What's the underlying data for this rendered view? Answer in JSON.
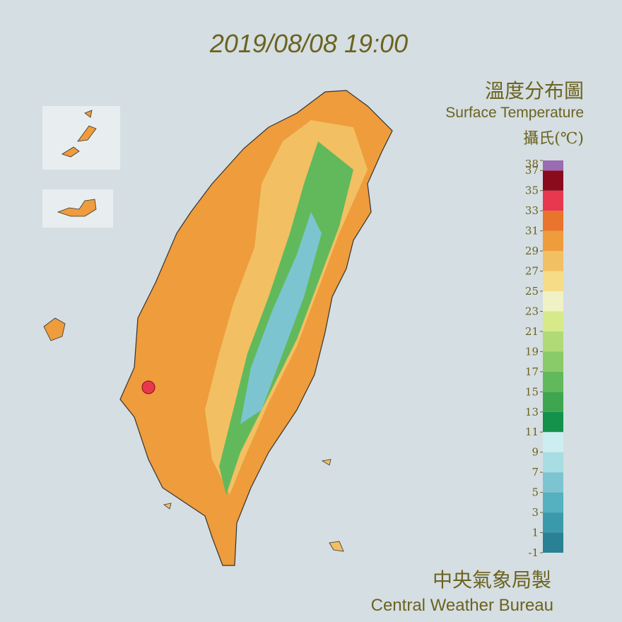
{
  "header": {
    "timestamp": "2019/08/08 19:00"
  },
  "legend": {
    "title_zh": "溫度分布圖",
    "title_en": "Surface Temperature",
    "unit": "攝氏(℃)",
    "ticks": [
      -1,
      1,
      3,
      5,
      7,
      9,
      11,
      13,
      15,
      17,
      19,
      21,
      23,
      25,
      27,
      29,
      31,
      33,
      35,
      37,
      38
    ],
    "colors": [
      "#2a8194",
      "#3a9aab",
      "#55b0bf",
      "#7cc5d0",
      "#a8dde3",
      "#cdeef0",
      "#14914a",
      "#3fa650",
      "#62b95c",
      "#89ca69",
      "#b0da76",
      "#d6ea8a",
      "#f1f1c6",
      "#f6dc86",
      "#f2c062",
      "#ee9c3c",
      "#e9742c",
      "#e8384f",
      "#8a0b1c",
      "#9b6bb3"
    ]
  },
  "footer": {
    "agency_zh": "中央氣象局製",
    "agency_en": "Central Weather Bureau"
  }
}
